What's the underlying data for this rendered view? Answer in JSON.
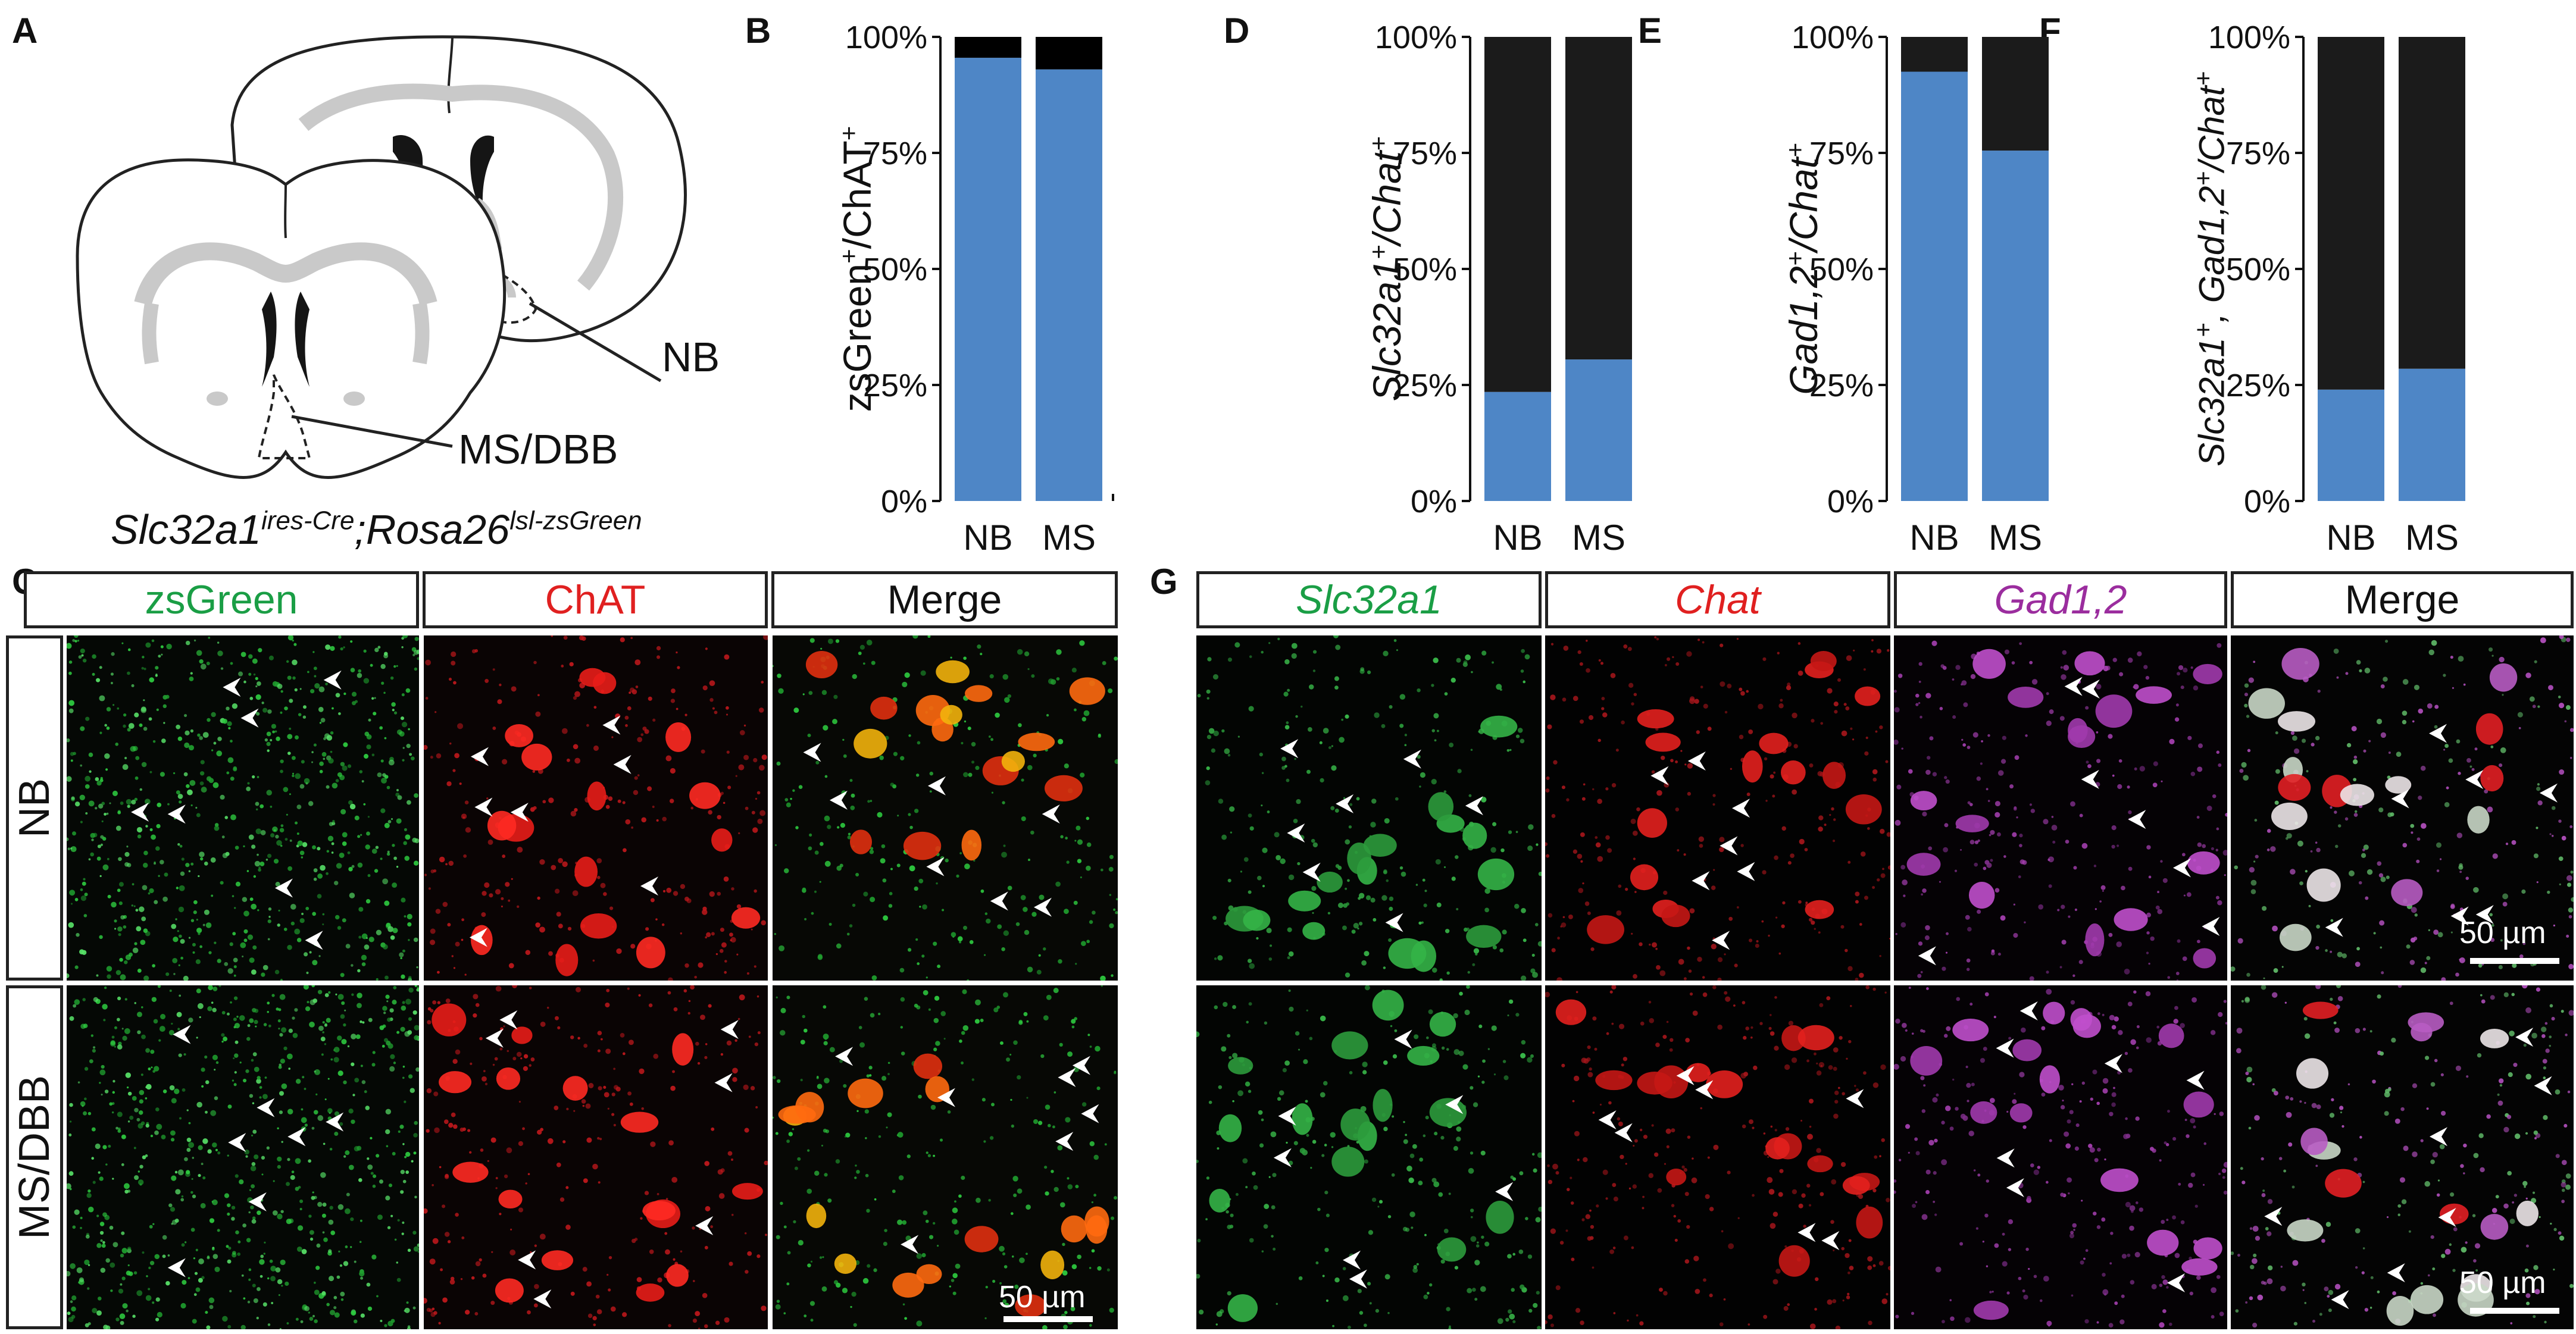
{
  "panel_labels": {
    "A": "A",
    "B": "B",
    "C": "C",
    "D": "D",
    "E": "E",
    "F": "F",
    "G": "G"
  },
  "panel_a": {
    "nb_label": "NB",
    "ms_label": "MS/DBB",
    "genotype": {
      "p1": "Slc32a1",
      "s1": "ires-Cre",
      "p2": ";Rosa26",
      "s2": "lsl-zsGreen"
    }
  },
  "colors": {
    "blue": "#4E86C6",
    "black": "#1b1b1b",
    "green": "#1ea53c",
    "red": "#e8262a",
    "purple": "#9b2d9e",
    "arrow": "#ffffff"
  },
  "panel_c": {
    "headers": [
      "zsGreen",
      "ChAT",
      "Merge"
    ],
    "header_colors": [
      "#1a9e45",
      "#e02020",
      "#111111"
    ],
    "rows": [
      "NB",
      "MS/DBB"
    ],
    "scale_bar": "50 µm"
  },
  "panel_g": {
    "headers": [
      "Slc32a1",
      "Chat",
      "Gad1,2",
      "Merge"
    ],
    "header_colors": [
      "#1a9e45",
      "#e02020",
      "#9b2d9e",
      "#111111"
    ],
    "scale_bar_top": "50 µm",
    "scale_bar_bottom": "50 µm"
  },
  "chart_data": [
    {
      "panel": "B",
      "type": "bar",
      "stacked": true,
      "categories": [
        "NB",
        "MS"
      ],
      "series": [
        {
          "values": [
            95.5,
            93
          ],
          "color": "#4E86C6"
        },
        {
          "values": [
            4.5,
            7
          ],
          "color": "#000000"
        }
      ],
      "ylabel": {
        "main": "zsGreen",
        "sup1": "+",
        "mid": "/ChAT",
        "sup2": "+"
      },
      "yticks": [
        "0%",
        "25%",
        "50%",
        "75%",
        "100%"
      ],
      "ylim": [
        0,
        100
      ]
    },
    {
      "panel": "D",
      "type": "bar",
      "stacked": true,
      "categories": [
        "NB",
        "MS"
      ],
      "series": [
        {
          "values": [
            23.5,
            30.5
          ],
          "color": "#4E86C6"
        },
        {
          "values": [
            76.5,
            69.5
          ],
          "color": "#1b1b1b"
        }
      ],
      "ylabel": {
        "main": "Slc32a1",
        "sup1": "+",
        "mid": "/Chat",
        "sup2": "+"
      },
      "yticks": [
        "0%",
        "25%",
        "50%",
        "75%",
        "100%"
      ],
      "ylim": [
        0,
        100
      ]
    },
    {
      "panel": "E",
      "type": "bar",
      "stacked": true,
      "categories": [
        "NB",
        "MS"
      ],
      "series": [
        {
          "values": [
            92.5,
            75.5
          ],
          "color": "#4E86C6"
        },
        {
          "values": [
            7.5,
            24.5
          ],
          "color": "#1b1b1b"
        }
      ],
      "ylabel": {
        "main": "Gad1,2",
        "sup1": "+",
        "mid": "/Chat",
        "sup2": "+"
      },
      "yticks": [
        "0%",
        "25%",
        "50%",
        "75%",
        "100%"
      ],
      "ylim": [
        0,
        100
      ]
    },
    {
      "panel": "F",
      "type": "bar",
      "stacked": true,
      "categories": [
        "NB",
        "MS"
      ],
      "series": [
        {
          "values": [
            24,
            28.5
          ],
          "color": "#4E86C6"
        },
        {
          "values": [
            76,
            71.5
          ],
          "color": "#1b1b1b"
        }
      ],
      "ylabel": {
        "main": "Slc32a1",
        "sup1": "+",
        "mid": ", Gad1,2",
        "sup2": "+",
        "tail": "/Chat",
        "sup3": "+"
      },
      "yticks": [
        "0%",
        "25%",
        "50%",
        "75%",
        "100%"
      ],
      "ylim": [
        0,
        100
      ]
    }
  ]
}
